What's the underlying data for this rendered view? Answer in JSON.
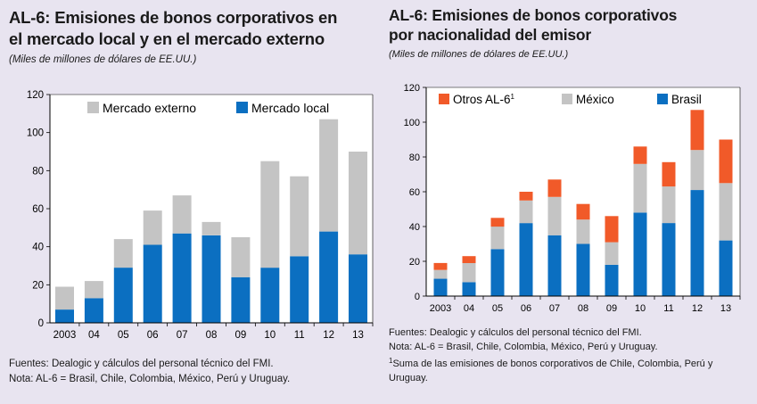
{
  "left_panel": {
    "title_line1": "AL-6: Emisiones de bonos corporativos en",
    "title_line2": "el mercado local y en el mercado externo",
    "subtitle": "(Miles de millones de dólares de EE.UU.)",
    "notes": [
      "Fuentes: Dealogic y cálculos del personal técnico del FMI.",
      "Nota: AL-6 = Brasil, Chile, Colombia, México, Perú y Uruguay."
    ]
  },
  "right_panel": {
    "title_line1": "AL-6: Emisiones de bonos corporativos",
    "title_line2": "por nacionalidad del emisor",
    "subtitle": "(Miles de millones de dólares de EE.UU.)",
    "notes": [
      "Fuentes: Dealogic y cálculos del personal técnico del FMI.",
      "Nota: AL-6 = Brasil, Chile, Colombia, México, Perú y Uruguay."
    ],
    "footnote_mark": "1",
    "footnote_text": "Suma de las emisiones de bonos corporativos de Chile, Colombia, Perú y Uruguay."
  },
  "colors": {
    "blue": "#0b6fc1",
    "gray": "#c4c4c4",
    "red": "#f15a29"
  },
  "chart_data": [
    {
      "type": "bar",
      "stacked": true,
      "title": "AL-6: Emisiones de bonos corporativos en el mercado local y en el mercado externo",
      "subtitle": "(Miles de millones de dólares de EE.UU.)",
      "categories": [
        "2003",
        "04",
        "05",
        "06",
        "07",
        "08",
        "09",
        "10",
        "11",
        "12",
        "13"
      ],
      "ylim": [
        0,
        120
      ],
      "yticks": [
        0,
        20,
        40,
        60,
        80,
        100,
        120
      ],
      "grid": false,
      "legend": "top-right",
      "series": [
        {
          "name": "Mercado local",
          "color": "#0b6fc1",
          "values": [
            7,
            13,
            29,
            41,
            47,
            46,
            24,
            29,
            35,
            48,
            36
          ]
        },
        {
          "name": "Mercado externo",
          "color": "#c4c4c4",
          "values": [
            12,
            9,
            15,
            18,
            20,
            7,
            21,
            56,
            42,
            59,
            54
          ]
        }
      ],
      "legend_order": [
        "Mercado externo",
        "Mercado local"
      ]
    },
    {
      "type": "bar",
      "stacked": true,
      "title": "AL-6: Emisiones de bonos corporativos por nacionalidad del emisor",
      "subtitle": "(Miles de millones de dólares de EE.UU.)",
      "categories": [
        "2003",
        "04",
        "05",
        "06",
        "07",
        "08",
        "09",
        "10",
        "11",
        "12",
        "13"
      ],
      "ylim": [
        0,
        120
      ],
      "yticks": [
        0,
        20,
        40,
        60,
        80,
        100,
        120
      ],
      "grid": false,
      "legend": "top",
      "series": [
        {
          "name": "Brasil",
          "color": "#0b6fc1",
          "values": [
            10,
            8,
            27,
            42,
            35,
            30,
            18,
            48,
            42,
            61,
            32
          ]
        },
        {
          "name": "México",
          "color": "#c4c4c4",
          "values": [
            5,
            11,
            13,
            13,
            22,
            14,
            13,
            28,
            21,
            23,
            33
          ]
        },
        {
          "name": "Otros AL-6",
          "name_sup": "1",
          "color": "#f15a29",
          "values": [
            4,
            4,
            5,
            5,
            10,
            9,
            15,
            10,
            14,
            23,
            25
          ]
        }
      ],
      "legend_order": [
        "Otros AL-6",
        "México",
        "Brasil"
      ]
    }
  ]
}
